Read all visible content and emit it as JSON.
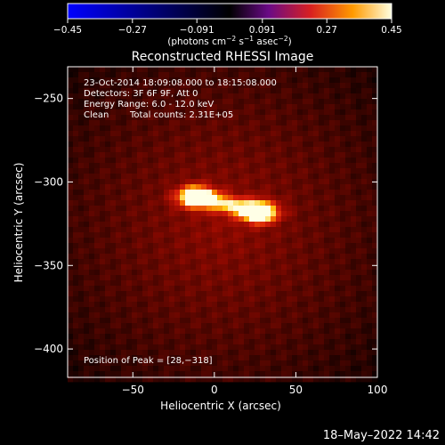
{
  "colorbar": {
    "ticks": [
      {
        "value": -0.45,
        "label": "−0.45"
      },
      {
        "value": -0.27,
        "label": "−0.27"
      },
      {
        "value": -0.091,
        "label": "−0.091"
      },
      {
        "value": 0.091,
        "label": "0.091"
      },
      {
        "value": 0.27,
        "label": "0.27"
      },
      {
        "value": 0.45,
        "label": "0.45"
      }
    ],
    "range": [
      -0.45,
      0.45
    ],
    "units_prefix": "(photons cm",
    "units_sup1": "−2",
    "units_mid": " s",
    "units_sup2": "−1",
    "units_mid2": " asec",
    "units_sup3": "−2",
    "units_suffix": ")"
  },
  "chart_data": {
    "type": "heatmap",
    "title": "Reconstructed RHESSI Image",
    "xlabel": "Heliocentric X (arcsec)",
    "ylabel": "Heliocentric Y (arcsec)",
    "xlim": [
      -90,
      100
    ],
    "ylim": [
      -417,
      -231
    ],
    "xticks": [
      {
        "value": -50,
        "label": "−50"
      },
      {
        "value": 0,
        "label": "0"
      },
      {
        "value": 50,
        "label": "50"
      },
      {
        "value": 100,
        "label": "100"
      }
    ],
    "yticks": [
      {
        "value": -250,
        "label": "−250"
      },
      {
        "value": -300,
        "label": "−300"
      },
      {
        "value": -350,
        "label": "−350"
      },
      {
        "value": -400,
        "label": "−400"
      }
    ],
    "sources": [
      {
        "x": -12,
        "y": -309,
        "peak": 0.42
      },
      {
        "x": 28,
        "y": -318,
        "peak": 0.45
      }
    ],
    "background_level": 0.15,
    "annotations": {
      "line1": "23-Oct-2014 18:09:08.000 to 18:15:08.000",
      "line2": "Detectors: 3F 6F 9F, Att 0",
      "line3": "Energy Range: 6.0 - 12.0 keV",
      "line4_a": "Clean",
      "line4_b": "Total counts: 2.31E+05",
      "peak": "Position of Peak = [28,−318]"
    }
  },
  "footer_timestamp": "18–May–2022 14:42"
}
